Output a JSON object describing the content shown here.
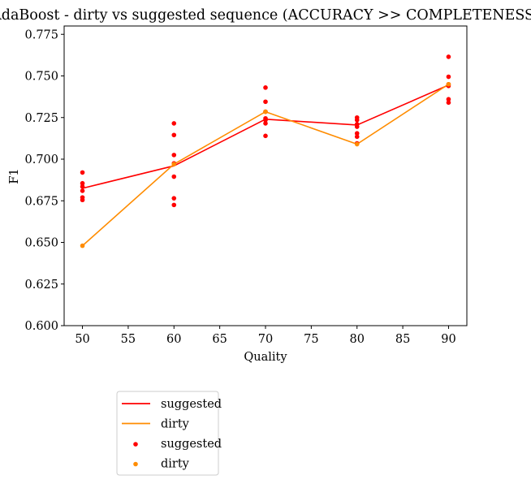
{
  "chart_data": {
    "type": "line",
    "title": "AdaBoost - dirty vs suggested sequence (ACCURACY >> COMPLETENESS)",
    "xlabel": "Quality",
    "ylabel": "F1",
    "xlim": [
      48,
      92
    ],
    "ylim": [
      0.6,
      0.78
    ],
    "xticks": [
      50,
      55,
      60,
      65,
      70,
      75,
      80,
      85,
      90
    ],
    "yticks": [
      0.6,
      0.625,
      0.65,
      0.675,
      0.7,
      0.725,
      0.75,
      0.775
    ],
    "ytick_labels": [
      "0.600",
      "0.625",
      "0.650",
      "0.675",
      "0.700",
      "0.725",
      "0.750",
      "0.775"
    ],
    "grid": false,
    "legend_placement": "below",
    "lines": [
      {
        "name": "suggested",
        "color": "#ff0000",
        "x": [
          50,
          60,
          70,
          80,
          90
        ],
        "y": [
          0.6825,
          0.696,
          0.724,
          0.7205,
          0.7445
        ]
      },
      {
        "name": "dirty",
        "color": "#ff8c00",
        "x": [
          50,
          60,
          70,
          80,
          90
        ],
        "y": [
          0.648,
          0.697,
          0.7285,
          0.709,
          0.745
        ]
      }
    ],
    "scatter": [
      {
        "name": "suggested",
        "color": "#ff0000",
        "points": [
          [
            50,
            0.692
          ],
          [
            50,
            0.6855
          ],
          [
            50,
            0.6835
          ],
          [
            50,
            0.681
          ],
          [
            50,
            0.677
          ],
          [
            50,
            0.6755
          ],
          [
            60,
            0.7215
          ],
          [
            60,
            0.7145
          ],
          [
            60,
            0.7025
          ],
          [
            60,
            0.6975
          ],
          [
            60,
            0.6895
          ],
          [
            60,
            0.6765
          ],
          [
            60,
            0.6725
          ],
          [
            70,
            0.743
          ],
          [
            70,
            0.7345
          ],
          [
            70,
            0.7285
          ],
          [
            70,
            0.7245
          ],
          [
            70,
            0.7235
          ],
          [
            70,
            0.7215
          ],
          [
            70,
            0.714
          ],
          [
            80,
            0.725
          ],
          [
            80,
            0.7235
          ],
          [
            80,
            0.721
          ],
          [
            80,
            0.7195
          ],
          [
            80,
            0.7155
          ],
          [
            80,
            0.7135
          ],
          [
            80,
            0.7095
          ],
          [
            90,
            0.7615
          ],
          [
            90,
            0.7495
          ],
          [
            90,
            0.745
          ],
          [
            90,
            0.744
          ],
          [
            90,
            0.736
          ],
          [
            90,
            0.734
          ]
        ]
      },
      {
        "name": "dirty",
        "color": "#ff8c00",
        "points": [
          [
            50,
            0.648
          ],
          [
            60,
            0.697
          ],
          [
            70,
            0.7285
          ],
          [
            80,
            0.709
          ],
          [
            90,
            0.745
          ]
        ]
      }
    ],
    "legend": [
      {
        "label": "suggested",
        "kind": "line",
        "color": "#ff0000"
      },
      {
        "label": "dirty",
        "kind": "line",
        "color": "#ff8c00"
      },
      {
        "label": "suggested",
        "kind": "marker",
        "color": "#ff0000"
      },
      {
        "label": "dirty",
        "kind": "marker",
        "color": "#ff8c00"
      }
    ]
  }
}
